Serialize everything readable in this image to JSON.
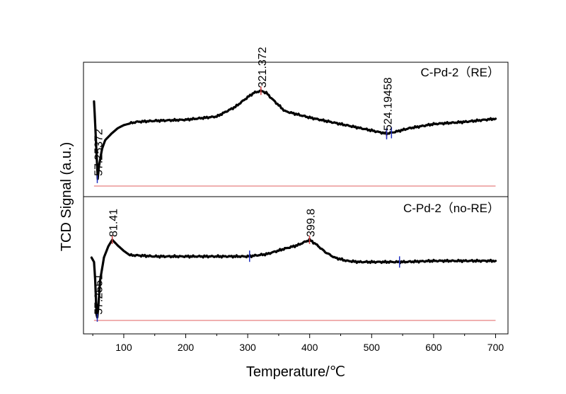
{
  "chart_data": {
    "type": "line",
    "xlabel": "Temperature/℃",
    "ylabel": "TCD Signal (a.u.)",
    "xlim": [
      35,
      720
    ],
    "xticks": [
      "100",
      "200",
      "300",
      "400",
      "500",
      "600",
      "700"
    ],
    "grid": false,
    "panels": [
      {
        "name": "C-Pd-2（RE）",
        "series": [
          {
            "x": [
              52,
              54,
              56,
              58,
              60,
              65,
              70,
              80,
              90,
              100,
              120,
              150,
              200,
              250,
              280,
              300,
              310,
              321.37,
              330,
              340,
              360,
              400,
              450,
              500,
              524.19,
              540,
              560,
              600,
              650,
              700
            ],
            "y": [
              0.78,
              0.56,
              0.3,
              0.06,
              0.18,
              0.34,
              0.42,
              0.48,
              0.53,
              0.56,
              0.59,
              0.6,
              0.61,
              0.64,
              0.73,
              0.82,
              0.86,
              0.88,
              0.86,
              0.8,
              0.69,
              0.63,
              0.57,
              0.51,
              0.48,
              0.5,
              0.53,
              0.57,
              0.59,
              0.62
            ]
          }
        ],
        "annotations": [
          {
            "x": 57.25,
            "y": 0.06,
            "label": "57.25372"
          },
          {
            "x": 321.37,
            "y": 0.88,
            "label": "321.372"
          },
          {
            "x": 524.19,
            "y": 0.48,
            "label": "524.19458"
          }
        ],
        "marker_x": [
          524.19,
          532
        ]
      },
      {
        "name": "C-Pd-2（no-RE）",
        "series": [
          {
            "x": [
              48,
              52,
              54,
              56,
              57.25,
              59,
              62,
              68,
              75,
              81.41,
              90,
              100,
              110,
              120,
              150,
              200,
              250,
              300,
              330,
              360,
              380,
              399.8,
              410,
              425,
              440,
              460,
              480,
              500,
              550,
              600,
              650,
              700
            ],
            "y": [
              0.56,
              0.52,
              0.35,
              0.05,
              0.02,
              0.12,
              0.36,
              0.56,
              0.66,
              0.72,
              0.67,
              0.62,
              0.58,
              0.58,
              0.57,
              0.57,
              0.57,
              0.57,
              0.59,
              0.64,
              0.67,
              0.72,
              0.68,
              0.61,
              0.56,
              0.53,
              0.52,
              0.52,
              0.52,
              0.53,
              0.53,
              0.53
            ]
          }
        ],
        "annotations": [
          {
            "x": 57.25,
            "y": 0.02,
            "label": "57.2551"
          },
          {
            "x": 81.41,
            "y": 0.72,
            "label": "81.41"
          },
          {
            "x": 399.8,
            "y": 0.72,
            "label": "399.8"
          }
        ],
        "marker_x": [
          303,
          545
        ]
      }
    ]
  }
}
